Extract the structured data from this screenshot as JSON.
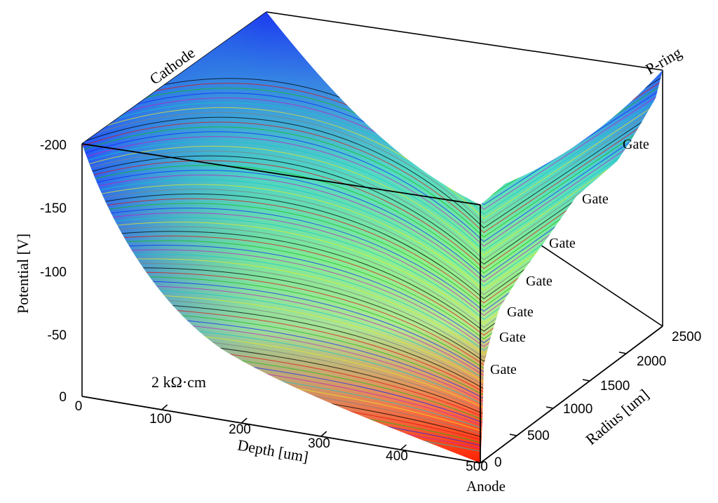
{
  "chart_data": {
    "type": "surface",
    "title": "",
    "xlabel": "Depth [um]",
    "ylabel": "Radius [um]",
    "zlabel": "Potential [V]",
    "x_ticks": [
      "0",
      "100",
      "200",
      "300",
      "400",
      "500"
    ],
    "y_ticks": [
      "0",
      "500",
      "1000",
      "1500",
      "2000",
      "2500"
    ],
    "z_ticks": [
      "0",
      "-50",
      "-100",
      "-150",
      "-200"
    ],
    "xlim": [
      0,
      500
    ],
    "ylim": [
      0,
      2500
    ],
    "zlim": [
      0,
      -200
    ],
    "annotations": {
      "cathode": "Cathode",
      "anode": "Anode",
      "pring": "P-ring",
      "gate": "Gate",
      "resistivity": "2 kΩ·cm"
    },
    "gate_count": 7,
    "surface_corners": {
      "depth0_radius0": -200,
      "depth500_radius0": 0,
      "depth0_radius2500": -200,
      "depth500_radius2500": -200
    },
    "colormap": [
      "#ff2000",
      "#ff8040",
      "#8ff090",
      "#30d0d0",
      "#1010ff"
    ]
  }
}
